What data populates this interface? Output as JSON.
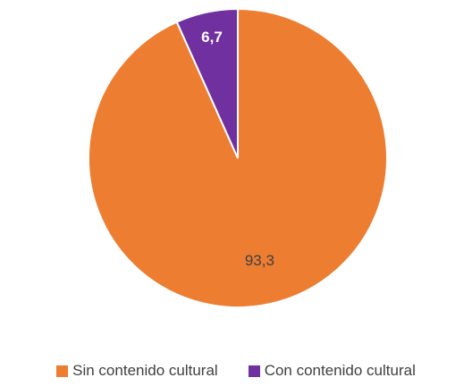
{
  "chart_data": {
    "type": "pie",
    "categories": [
      "Sin contenido cultural",
      "Con contenido cultural"
    ],
    "values": [
      93.3,
      6.7
    ],
    "data_labels": [
      "93,3",
      "6,7"
    ],
    "colors": [
      "#ED7D31",
      "#7030A0"
    ],
    "label_colors": [
      "#404040",
      "#ffffff"
    ],
    "label_weights": [
      "normal",
      "bold"
    ],
    "start_angle_deg": 0,
    "direction": "clockwise",
    "legend_position": "bottom",
    "title": ""
  }
}
